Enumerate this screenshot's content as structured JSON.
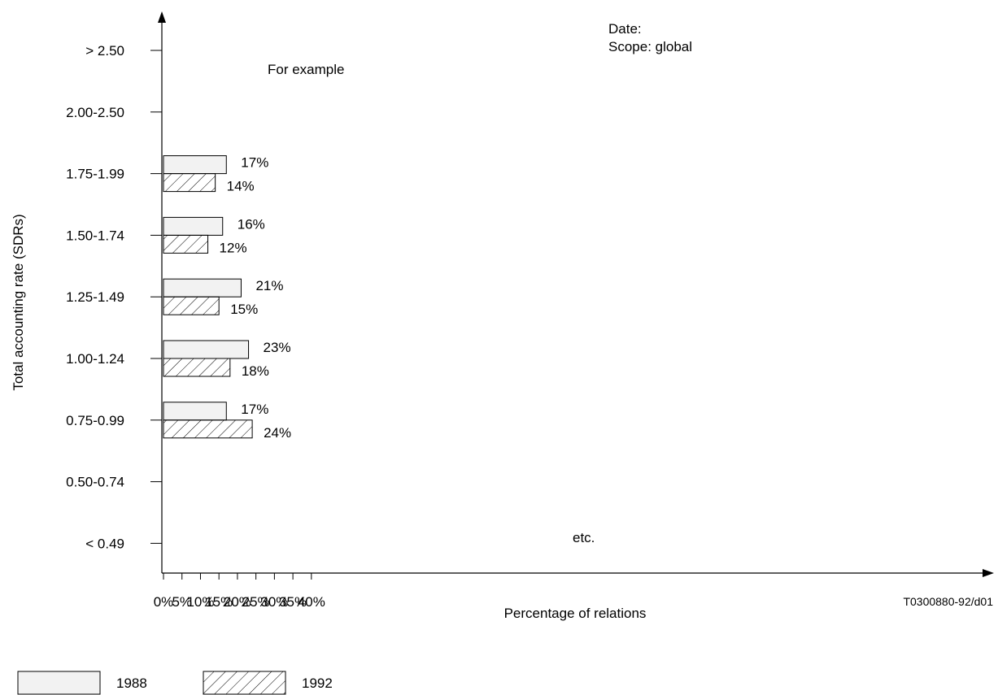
{
  "chart_data": {
    "type": "bar",
    "orientation": "horizontal",
    "categories": [
      "> 2.50",
      "2.00-2.50",
      "1.75-1.99",
      "1.50-1.74",
      "1.25-1.49",
      "1.00-1.24",
      "0.75-0.99",
      "0.50-0.74",
      "< 0.49"
    ],
    "series": [
      {
        "name": "1988",
        "values": [
          null,
          null,
          17,
          16,
          21,
          23,
          17,
          null,
          null
        ],
        "fill": "#f2f2f2",
        "pattern": "solid"
      },
      {
        "name": "1992",
        "values": [
          null,
          null,
          14,
          12,
          15,
          18,
          24,
          null,
          null
        ],
        "fill": "#ffffff",
        "pattern": "diagonal-hatch"
      }
    ],
    "value_labels": {
      "1988": [
        "",
        "",
        "17%",
        "16%",
        "21%",
        "23%",
        "17%",
        "",
        ""
      ],
      "1992": [
        "",
        "",
        "14%",
        "12%",
        "15%",
        "18%",
        "24%",
        "",
        ""
      ]
    },
    "xlabel": "Percentage of relations",
    "ylabel": "Total accounting rate (SDRs)",
    "xlim": [
      0,
      45
    ],
    "x_ticks": [
      0,
      5,
      10,
      15,
      20,
      25,
      30,
      35,
      40
    ],
    "x_tick_labels": [
      "0%",
      "5%",
      "10%",
      "15%",
      "20%",
      "25%",
      "30%",
      "35%",
      "40%"
    ],
    "grid": false,
    "legend_position": "bottom-left",
    "annotations": {
      "example": "For example",
      "etc": "etc.",
      "date": "Date:",
      "scope": "Scope: global",
      "figure_id": "T0300880-92/d01"
    }
  }
}
